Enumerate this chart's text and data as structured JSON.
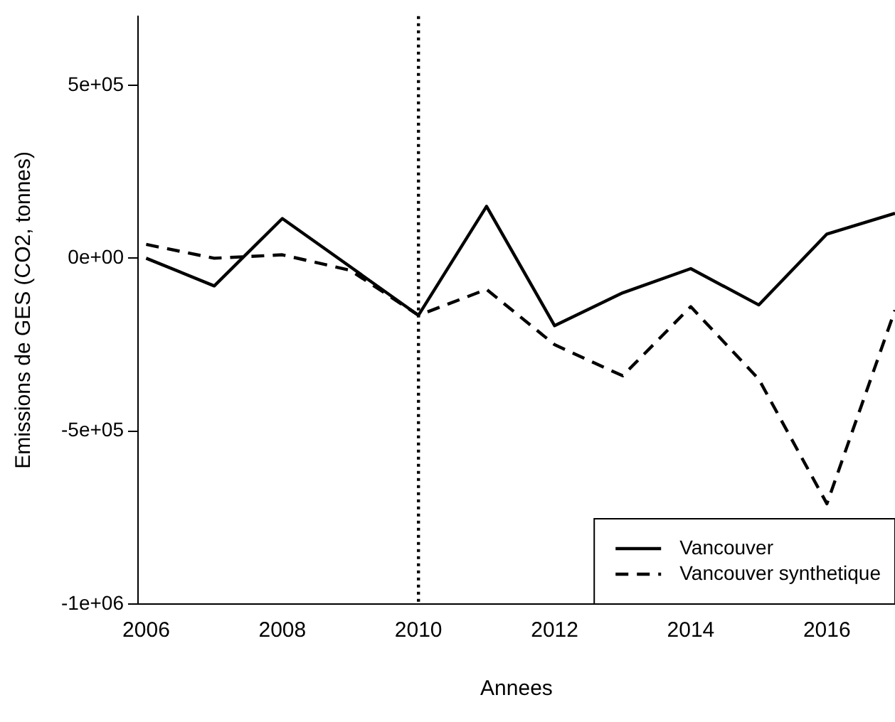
{
  "chart_data": {
    "type": "line",
    "xlabel": "Annees",
    "ylabel": "Emissions de GES (CO2, tonnes)",
    "x": [
      2006,
      2007,
      2008,
      2009,
      2010,
      2011,
      2012,
      2013,
      2014,
      2015,
      2016,
      2017
    ],
    "series": [
      {
        "name": "Vancouver",
        "color": "#000000",
        "line_style": "solid",
        "values": [
          0,
          -80000,
          115000,
          -25000,
          -165000,
          150000,
          -195000,
          -100000,
          -30000,
          -135000,
          70000,
          130000
        ]
      },
      {
        "name": "Vancouver synthetique",
        "color": "#000000",
        "line_style": "dashed",
        "values": [
          40000,
          0,
          10000,
          -35000,
          -165000,
          -90000,
          -250000,
          -340000,
          -140000,
          -350000,
          -710000,
          -150000
        ]
      }
    ],
    "xlim": [
      2005.88,
      2017
    ],
    "xticks": [
      2006,
      2008,
      2010,
      2012,
      2014,
      2016
    ],
    "ylim": [
      -1000000,
      700000
    ],
    "yticks": [
      {
        "value": -1000000,
        "label": "-1e+06"
      },
      {
        "value": -500000,
        "label": "-5e+05"
      },
      {
        "value": 0,
        "label": "0e+00"
      },
      {
        "value": 500000,
        "label": "5e+05"
      }
    ],
    "ref_lines": [
      {
        "axis": "x",
        "value": 2010,
        "line_style": "dotted",
        "color": "#000000"
      }
    ],
    "grid": false,
    "legend": "bottom right",
    "marker": "none"
  }
}
